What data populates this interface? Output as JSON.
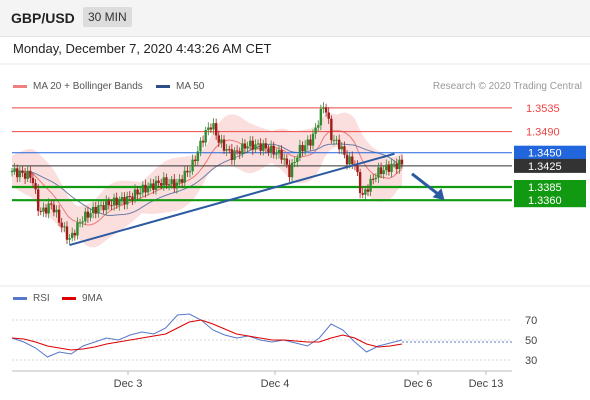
{
  "header": {
    "symbol": "GBP/USD",
    "interval": "30 MIN",
    "datetime": "Monday, December 7, 2020 4:43:26 AM CET"
  },
  "legend": {
    "ma20": {
      "label": "MA 20 + Bollinger Bands",
      "color": "#f08080"
    },
    "ma50": {
      "label": "MA 50",
      "color": "#2b4f8a"
    },
    "credit": "Research © 2020 Trading Central",
    "rsi": {
      "label": "RSI",
      "color": "#5577cc"
    },
    "ma9": {
      "label": "9MA",
      "color": "#dd0000"
    }
  },
  "chart_data": [
    {
      "type": "candlestick",
      "ylim": [
        1.3205,
        1.3565
      ],
      "x_ticks": [
        "Dec 3",
        "Dec 4",
        "Dec 6",
        "Dec 13"
      ],
      "levels": [
        {
          "label": "1.3535",
          "value": 1.3535,
          "style": "resistance",
          "color": "#ee4444"
        },
        {
          "label": "1.3490",
          "value": 1.349,
          "style": "resistance",
          "color": "#ee4444"
        },
        {
          "label": "1.3450",
          "value": 1.345,
          "style": "current-blue",
          "color": "#2266dd"
        },
        {
          "label": "1.3425",
          "value": 1.3425,
          "style": "last-price",
          "color": "#333333"
        },
        {
          "label": "1.3385",
          "value": 1.3385,
          "style": "support",
          "color": "#119911"
        },
        {
          "label": "1.3360",
          "value": 1.336,
          "style": "support",
          "color": "#119911"
        }
      ],
      "trendline": {
        "from": [
          0.115,
          1.3275
        ],
        "to": [
          0.765,
          1.3448
        ]
      },
      "forecast_arrow": {
        "from": [
          0.8,
          1.341
        ],
        "to": [
          0.865,
          1.336
        ]
      },
      "close_path": [
        [
          0.0,
          1.3415
        ],
        [
          0.04,
          1.3405
        ],
        [
          0.055,
          1.3335
        ],
        [
          0.08,
          1.3352
        ],
        [
          0.1,
          1.331
        ],
        [
          0.115,
          1.3285
        ],
        [
          0.14,
          1.3325
        ],
        [
          0.17,
          1.3345
        ],
        [
          0.2,
          1.3355
        ],
        [
          0.23,
          1.3362
        ],
        [
          0.26,
          1.338
        ],
        [
          0.3,
          1.3395
        ],
        [
          0.33,
          1.339
        ],
        [
          0.36,
          1.3425
        ],
        [
          0.385,
          1.3485
        ],
        [
          0.4,
          1.3505
        ],
        [
          0.415,
          1.347
        ],
        [
          0.44,
          1.3445
        ],
        [
          0.47,
          1.3465
        ],
        [
          0.5,
          1.3462
        ],
        [
          0.54,
          1.3445
        ],
        [
          0.555,
          1.3412
        ],
        [
          0.575,
          1.3455
        ],
        [
          0.6,
          1.3475
        ],
        [
          0.625,
          1.3545
        ],
        [
          0.64,
          1.3475
        ],
        [
          0.655,
          1.3465
        ],
        [
          0.67,
          1.3435
        ],
        [
          0.685,
          1.3432
        ],
        [
          0.7,
          1.3365
        ],
        [
          0.715,
          1.339
        ],
        [
          0.73,
          1.3412
        ],
        [
          0.76,
          1.3425
        ],
        [
          0.78,
          1.343
        ]
      ],
      "band_half_width": 0.0042
    },
    {
      "type": "line",
      "title": "RSI",
      "ylim": [
        25,
        80
      ],
      "y_ticks": [
        "70",
        "50",
        "30"
      ],
      "series": [
        {
          "name": "RSI",
          "color": "#5577cc",
          "values": [
            52,
            48,
            42,
            33,
            38,
            36,
            44,
            48,
            52,
            50,
            55,
            58,
            56,
            62,
            75,
            76,
            70,
            60,
            55,
            52,
            54,
            50,
            48,
            50,
            47,
            44,
            52,
            66,
            60,
            48,
            38,
            44,
            47,
            50
          ]
        },
        {
          "name": "9MA",
          "color": "#dd0000",
          "values": [
            52,
            51,
            48,
            44,
            42,
            40,
            41,
            43,
            46,
            48,
            50,
            52,
            54,
            56,
            62,
            68,
            70,
            66,
            61,
            56,
            54,
            52,
            50,
            50,
            49,
            48,
            48,
            52,
            55,
            52,
            46,
            43,
            44,
            46
          ]
        }
      ]
    }
  ]
}
